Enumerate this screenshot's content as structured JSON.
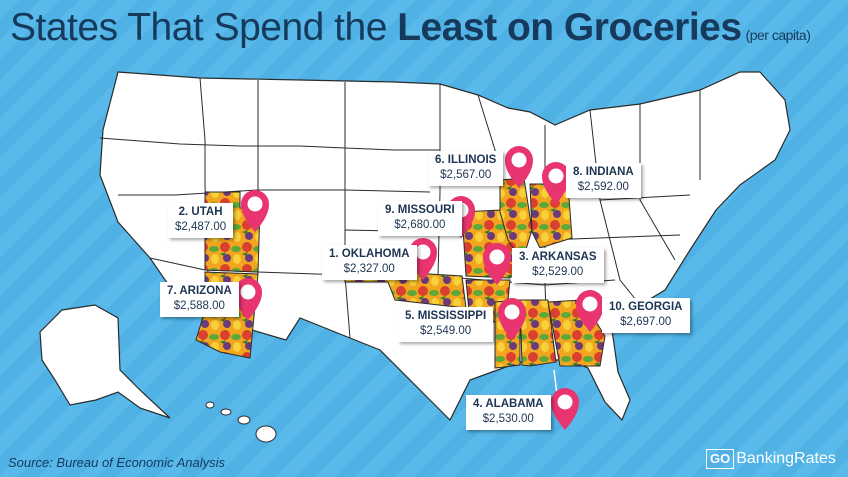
{
  "header": {
    "title_prefix": "States That Spend the ",
    "title_bold": "Least on Groceries",
    "title_suffix": "(per capita)"
  },
  "source": "Source: Bureau of Economic Analysis",
  "brand": {
    "go": "GO",
    "rest": "BankingRates"
  },
  "colors": {
    "background": "#58b9ea",
    "title": "#163a5c",
    "pin": "#e8356f",
    "state_fill": "#ffffff",
    "state_border": "#2b2b2b"
  },
  "rankings": [
    {
      "rank_label": "1. OKLAHOMA",
      "value": "$2,327.00",
      "state": "Oklahoma"
    },
    {
      "rank_label": "2. UTAH",
      "value": "$2,487.00",
      "state": "Utah"
    },
    {
      "rank_label": "3. ARKANSAS",
      "value": "$2,529.00",
      "state": "Arkansas"
    },
    {
      "rank_label": "4. ALABAMA",
      "value": "$2,530.00",
      "state": "Alabama"
    },
    {
      "rank_label": "5. MISSISSIPPI",
      "value": "$2,549.00",
      "state": "Mississippi"
    },
    {
      "rank_label": "6. ILLINOIS",
      "value": "$2,567.00",
      "state": "Illinois"
    },
    {
      "rank_label": "7. ARIZONA",
      "value": "$2,588.00",
      "state": "Arizona"
    },
    {
      "rank_label": "8. INDIANA",
      "value": "$2,592.00",
      "state": "Indiana"
    },
    {
      "rank_label": "9. MISSOURI",
      "value": "$2,680.00",
      "state": "Missouri"
    },
    {
      "rank_label": "10. GEORGIA",
      "value": "$2,697.00",
      "state": "Georgia"
    }
  ]
}
